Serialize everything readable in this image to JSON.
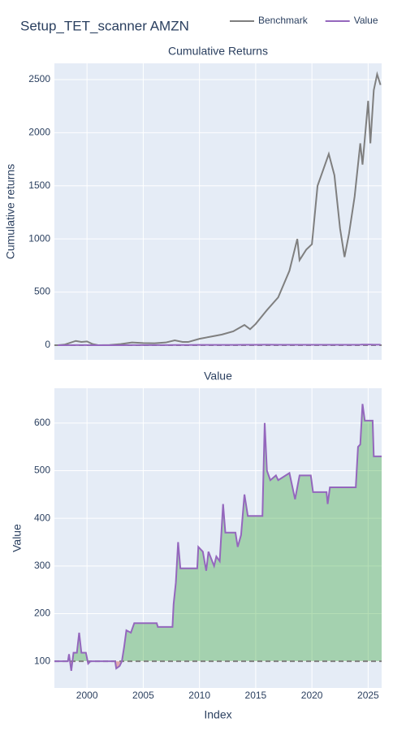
{
  "title": "Setup_TET_scanner AMZN",
  "chart_data": [
    {
      "type": "line",
      "title": "Cumulative Returns",
      "y_label": "Cumulative returns",
      "x": [
        1997.4,
        1998,
        1999,
        1999.5,
        2000,
        2000.5,
        2001,
        2002,
        2003,
        2004,
        2005,
        2006,
        2007,
        2007.8,
        2008.5,
        2009,
        2010,
        2011,
        2012,
        2013,
        2014,
        2014.5,
        2015,
        2016,
        2017,
        2018,
        2018.7,
        2018.9,
        2019.5,
        2020,
        2020.5,
        2021,
        2021.5,
        2022,
        2022.5,
        2022.9,
        2023.3,
        2023.8,
        2024.3,
        2024.5,
        2025,
        2025.2,
        2025.5,
        2025.8,
        2026.1
      ],
      "series": [
        {
          "name": "Benchmark",
          "color": "#7f7f7f",
          "values": [
            0,
            5,
            40,
            30,
            35,
            10,
            0,
            2,
            10,
            25,
            20,
            18,
            25,
            45,
            30,
            30,
            60,
            80,
            100,
            130,
            190,
            150,
            200,
            330,
            450,
            700,
            1000,
            800,
            900,
            950,
            1500,
            1650,
            1800,
            1600,
            1100,
            830,
            1050,
            1400,
            1900,
            1700,
            2300,
            1900,
            2400,
            2550,
            2450
          ]
        },
        {
          "name": "Value",
          "color": "#9467bd",
          "values": [
            0,
            0,
            0.2,
            0.6,
            0.2,
            0,
            0,
            0,
            0,
            0.6,
            0.8,
            0.8,
            0.7,
            1.6,
            1.9,
            1.9,
            2.4,
            2.1,
            2.7,
            2.7,
            3.5,
            3.05,
            3.05,
            4,
            3.8,
            3.95,
            3.4,
            3.9,
            3.9,
            3.9,
            3.55,
            3.55,
            3.65,
            3.65,
            3.65,
            3.65,
            3.65,
            3.65,
            4.55,
            5.4,
            5.05,
            5.05,
            4.3,
            4.3,
            4.3
          ]
        }
      ],
      "baseline": 0,
      "ylim": [
        -138,
        2653
      ],
      "yticks": [
        0,
        500,
        1000,
        1500,
        2000,
        2500
      ],
      "grid": true,
      "legend": "top-right"
    },
    {
      "type": "line",
      "title": "Value",
      "x_label": "Index",
      "y_label": "Value",
      "x": [
        1997.1,
        1998.3,
        1998.4,
        1998.6,
        1998.8,
        1999.1,
        1999.3,
        1999.5,
        1999.9,
        2000.1,
        2000.3,
        2002.5,
        2002.6,
        2002.9,
        2003.1,
        2003.3,
        2003.5,
        2003.9,
        2004.2,
        2006.2,
        2006.3,
        2007.6,
        2007.7,
        2007.9,
        2008.1,
        2008.3,
        2009.8,
        2009.9,
        2010.3,
        2010.6,
        2010.8,
        2011.3,
        2011.5,
        2011.8,
        2012.1,
        2012.3,
        2013.2,
        2013.4,
        2013.7,
        2014,
        2014.3,
        2015.6,
        2015.8,
        2016,
        2016.3,
        2016.8,
        2017,
        2018,
        2018.5,
        2018.9,
        2019.9,
        2020.1,
        2021.3,
        2021.4,
        2021.6,
        2023.9,
        2024.1,
        2024.3,
        2024.5,
        2024.7,
        2025.4,
        2025.5,
        2026.2
      ],
      "values": [
        100,
        100,
        115,
        80,
        118,
        118,
        160,
        118,
        118,
        95,
        100,
        100,
        85,
        90,
        100,
        130,
        165,
        160,
        180,
        180,
        172,
        172,
        220,
        265,
        350,
        295,
        295,
        340,
        330,
        290,
        330,
        300,
        320,
        310,
        430,
        370,
        370,
        340,
        365,
        450,
        405,
        405,
        600,
        500,
        480,
        490,
        480,
        495,
        440,
        490,
        490,
        455,
        455,
        430,
        465,
        465,
        550,
        555,
        640,
        605,
        605,
        530,
        530
      ],
      "color": "#9467bd",
      "fill_above": "#2ca02c",
      "fill_below": "#d62728",
      "baseline": 100,
      "xlim": [
        1997.1,
        2026.2
      ],
      "xticks": [
        2000,
        2005,
        2010,
        2015,
        2020,
        2025
      ],
      "ylim": [
        44,
        673
      ],
      "yticks": [
        100,
        200,
        300,
        400,
        500,
        600
      ],
      "grid": true
    }
  ]
}
